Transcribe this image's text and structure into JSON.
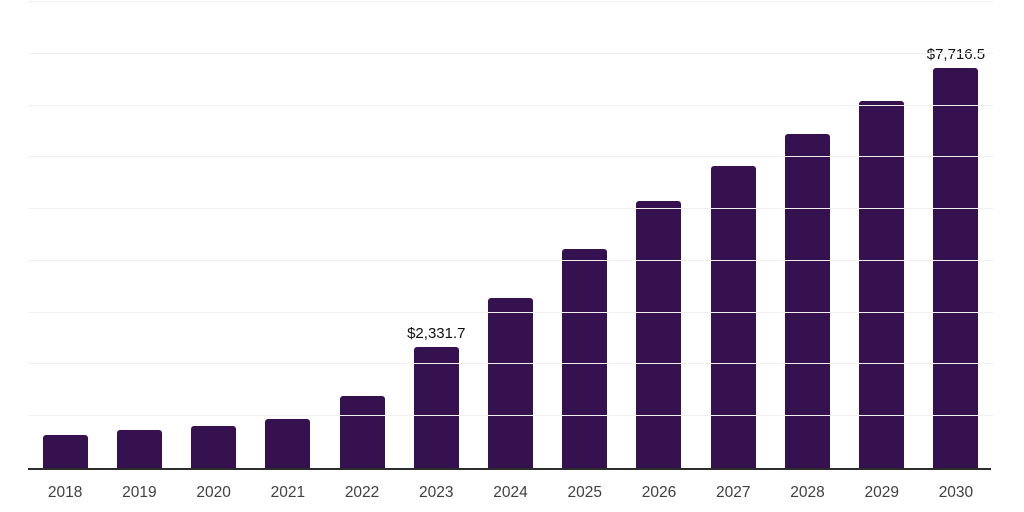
{
  "chart_data": {
    "type": "bar",
    "title": "",
    "categories": [
      "2018",
      "2019",
      "2020",
      "2021",
      "2022",
      "2023",
      "2024",
      "2025",
      "2026",
      "2027",
      "2028",
      "2029",
      "2030"
    ],
    "values": [
      640,
      740,
      820,
      950,
      1400,
      2331.7,
      3290,
      4230,
      5150,
      5840,
      6450,
      7090,
      7716.5
    ],
    "data_labels": {
      "2023": "$2,331.7",
      "2030": "$7,716.5"
    },
    "xlabel": "",
    "ylabel": "",
    "ylim": [
      0,
      9000
    ],
    "gridline_interval": 1000,
    "grid": true,
    "legend": false,
    "colors": {
      "bar": "#351150",
      "gridline": "#f0f0f0",
      "axis_line": "#2d2d2d",
      "tick_label": "#404040",
      "data_label": "#111111",
      "background": "#ffffff"
    }
  }
}
